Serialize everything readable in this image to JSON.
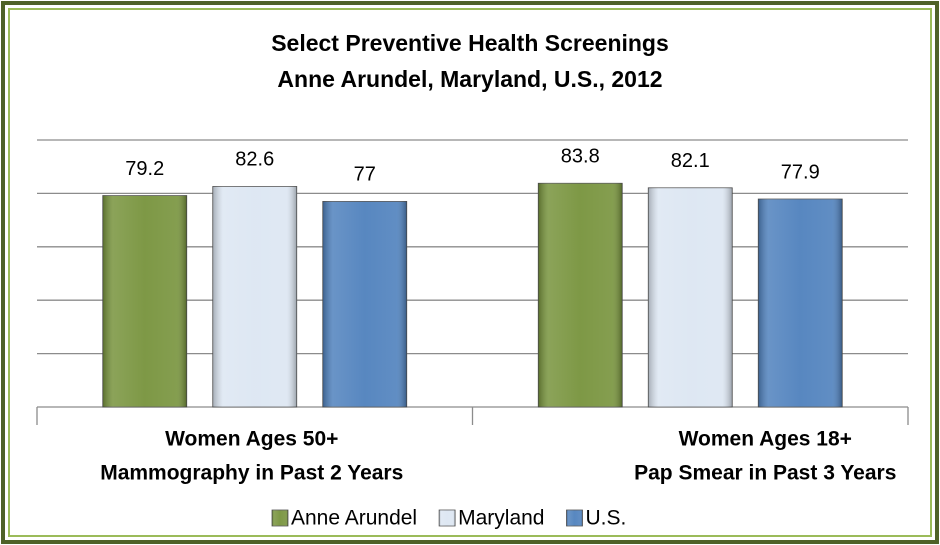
{
  "chart_data": {
    "type": "bar",
    "title": [
      "Select Preventive Health Screenings",
      "Anne Arundel, Maryland, U.S., 2012"
    ],
    "categories": [
      [
        "Women Ages 50+",
        "Mammography in Past 2 Years"
      ],
      [
        "Women Ages 18+",
        "Pap Smear in Past 3 Years"
      ]
    ],
    "series": [
      {
        "name": "Anne Arundel",
        "color": "#77933c",
        "values": [
          79.2,
          83.8
        ]
      },
      {
        "name": "Maryland",
        "color": "#dce6f2",
        "values": [
          82.6,
          82.1
        ]
      },
      {
        "name": "U.S.",
        "color": "#4f81bd",
        "values": [
          77,
          77.9
        ]
      }
    ],
    "ylim": [
      0,
      100
    ],
    "yticks": [
      0,
      20,
      40,
      60,
      80,
      100
    ],
    "grid": true,
    "legend": "bottom"
  }
}
